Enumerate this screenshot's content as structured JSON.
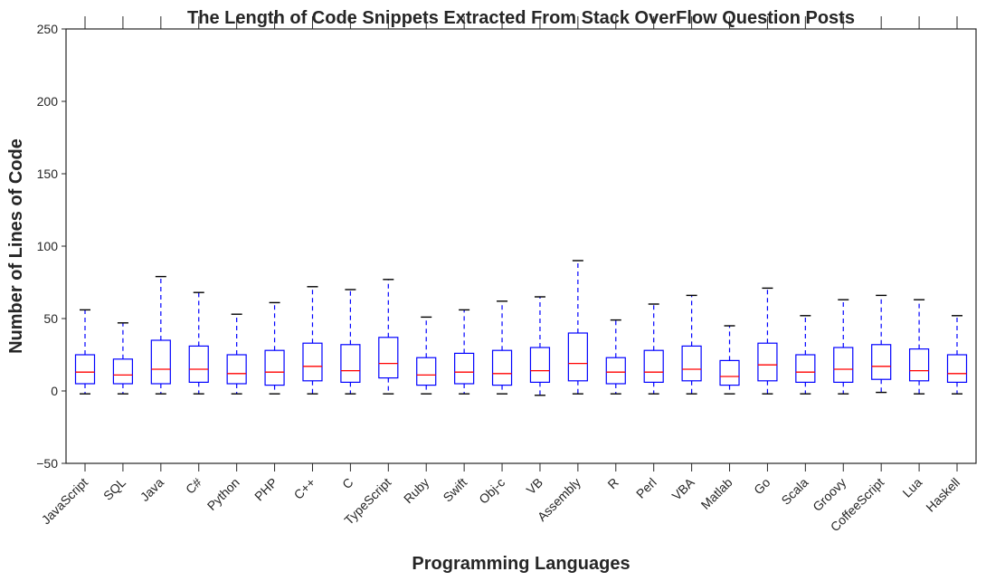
{
  "chart_data": {
    "type": "boxplot",
    "title": "The Length of Code Snippets Extracted From Stack OverFlow Question Posts",
    "xlabel": "Programming Languages",
    "ylabel": "Number of Lines of Code",
    "ylim": [
      -50,
      250
    ],
    "yticks": [
      -50,
      0,
      50,
      100,
      150,
      200,
      250
    ],
    "grid": false,
    "colors": {
      "box": "#0000ff",
      "median": "#ff0000",
      "cap": "#000000",
      "axis": "#262626"
    },
    "categories": [
      "JavaScript",
      "SQL",
      "Java",
      "C#",
      "Python",
      "PHP",
      "C++",
      "C",
      "TypeScript",
      "Ruby",
      "Swift",
      "Obj-c",
      "VB",
      "Assembly",
      "R",
      "Perl",
      "VBA",
      "Matlab",
      "Go",
      "Scala",
      "Groovy",
      "CoffeeScript",
      "Lua",
      "Haskell"
    ],
    "boxes": [
      {
        "low": -2,
        "q1": 5,
        "median": 13,
        "q3": 25,
        "high": 56
      },
      {
        "low": -2,
        "q1": 5,
        "median": 11,
        "q3": 22,
        "high": 47
      },
      {
        "low": -2,
        "q1": 5,
        "median": 15,
        "q3": 35,
        "high": 79
      },
      {
        "low": -2,
        "q1": 6,
        "median": 15,
        "q3": 31,
        "high": 68
      },
      {
        "low": -2,
        "q1": 5,
        "median": 12,
        "q3": 25,
        "high": 53
      },
      {
        "low": -2,
        "q1": 4,
        "median": 13,
        "q3": 28,
        "high": 61
      },
      {
        "low": -2,
        "q1": 7,
        "median": 17,
        "q3": 33,
        "high": 72
      },
      {
        "low": -2,
        "q1": 6,
        "median": 14,
        "q3": 32,
        "high": 70
      },
      {
        "low": -2,
        "q1": 9,
        "median": 19,
        "q3": 37,
        "high": 77
      },
      {
        "low": -2,
        "q1": 4,
        "median": 11,
        "q3": 23,
        "high": 51
      },
      {
        "low": -2,
        "q1": 5,
        "median": 13,
        "q3": 26,
        "high": 56
      },
      {
        "low": -2,
        "q1": 4,
        "median": 12,
        "q3": 28,
        "high": 62
      },
      {
        "low": -3,
        "q1": 6,
        "median": 14,
        "q3": 30,
        "high": 65
      },
      {
        "low": -2,
        "q1": 7,
        "median": 19,
        "q3": 40,
        "high": 90
      },
      {
        "low": -2,
        "q1": 5,
        "median": 13,
        "q3": 23,
        "high": 49
      },
      {
        "low": -2,
        "q1": 6,
        "median": 13,
        "q3": 28,
        "high": 60
      },
      {
        "low": -2,
        "q1": 7,
        "median": 15,
        "q3": 31,
        "high": 66
      },
      {
        "low": -2,
        "q1": 4,
        "median": 10,
        "q3": 21,
        "high": 45
      },
      {
        "low": -2,
        "q1": 7,
        "median": 18,
        "q3": 33,
        "high": 71
      },
      {
        "low": -2,
        "q1": 6,
        "median": 13,
        "q3": 25,
        "high": 52
      },
      {
        "low": -2,
        "q1": 6,
        "median": 15,
        "q3": 30,
        "high": 63
      },
      {
        "low": -1,
        "q1": 8,
        "median": 17,
        "q3": 32,
        "high": 66
      },
      {
        "low": -2,
        "q1": 7,
        "median": 14,
        "q3": 29,
        "high": 63
      },
      {
        "low": -2,
        "q1": 6,
        "median": 12,
        "q3": 25,
        "high": 52
      }
    ]
  }
}
